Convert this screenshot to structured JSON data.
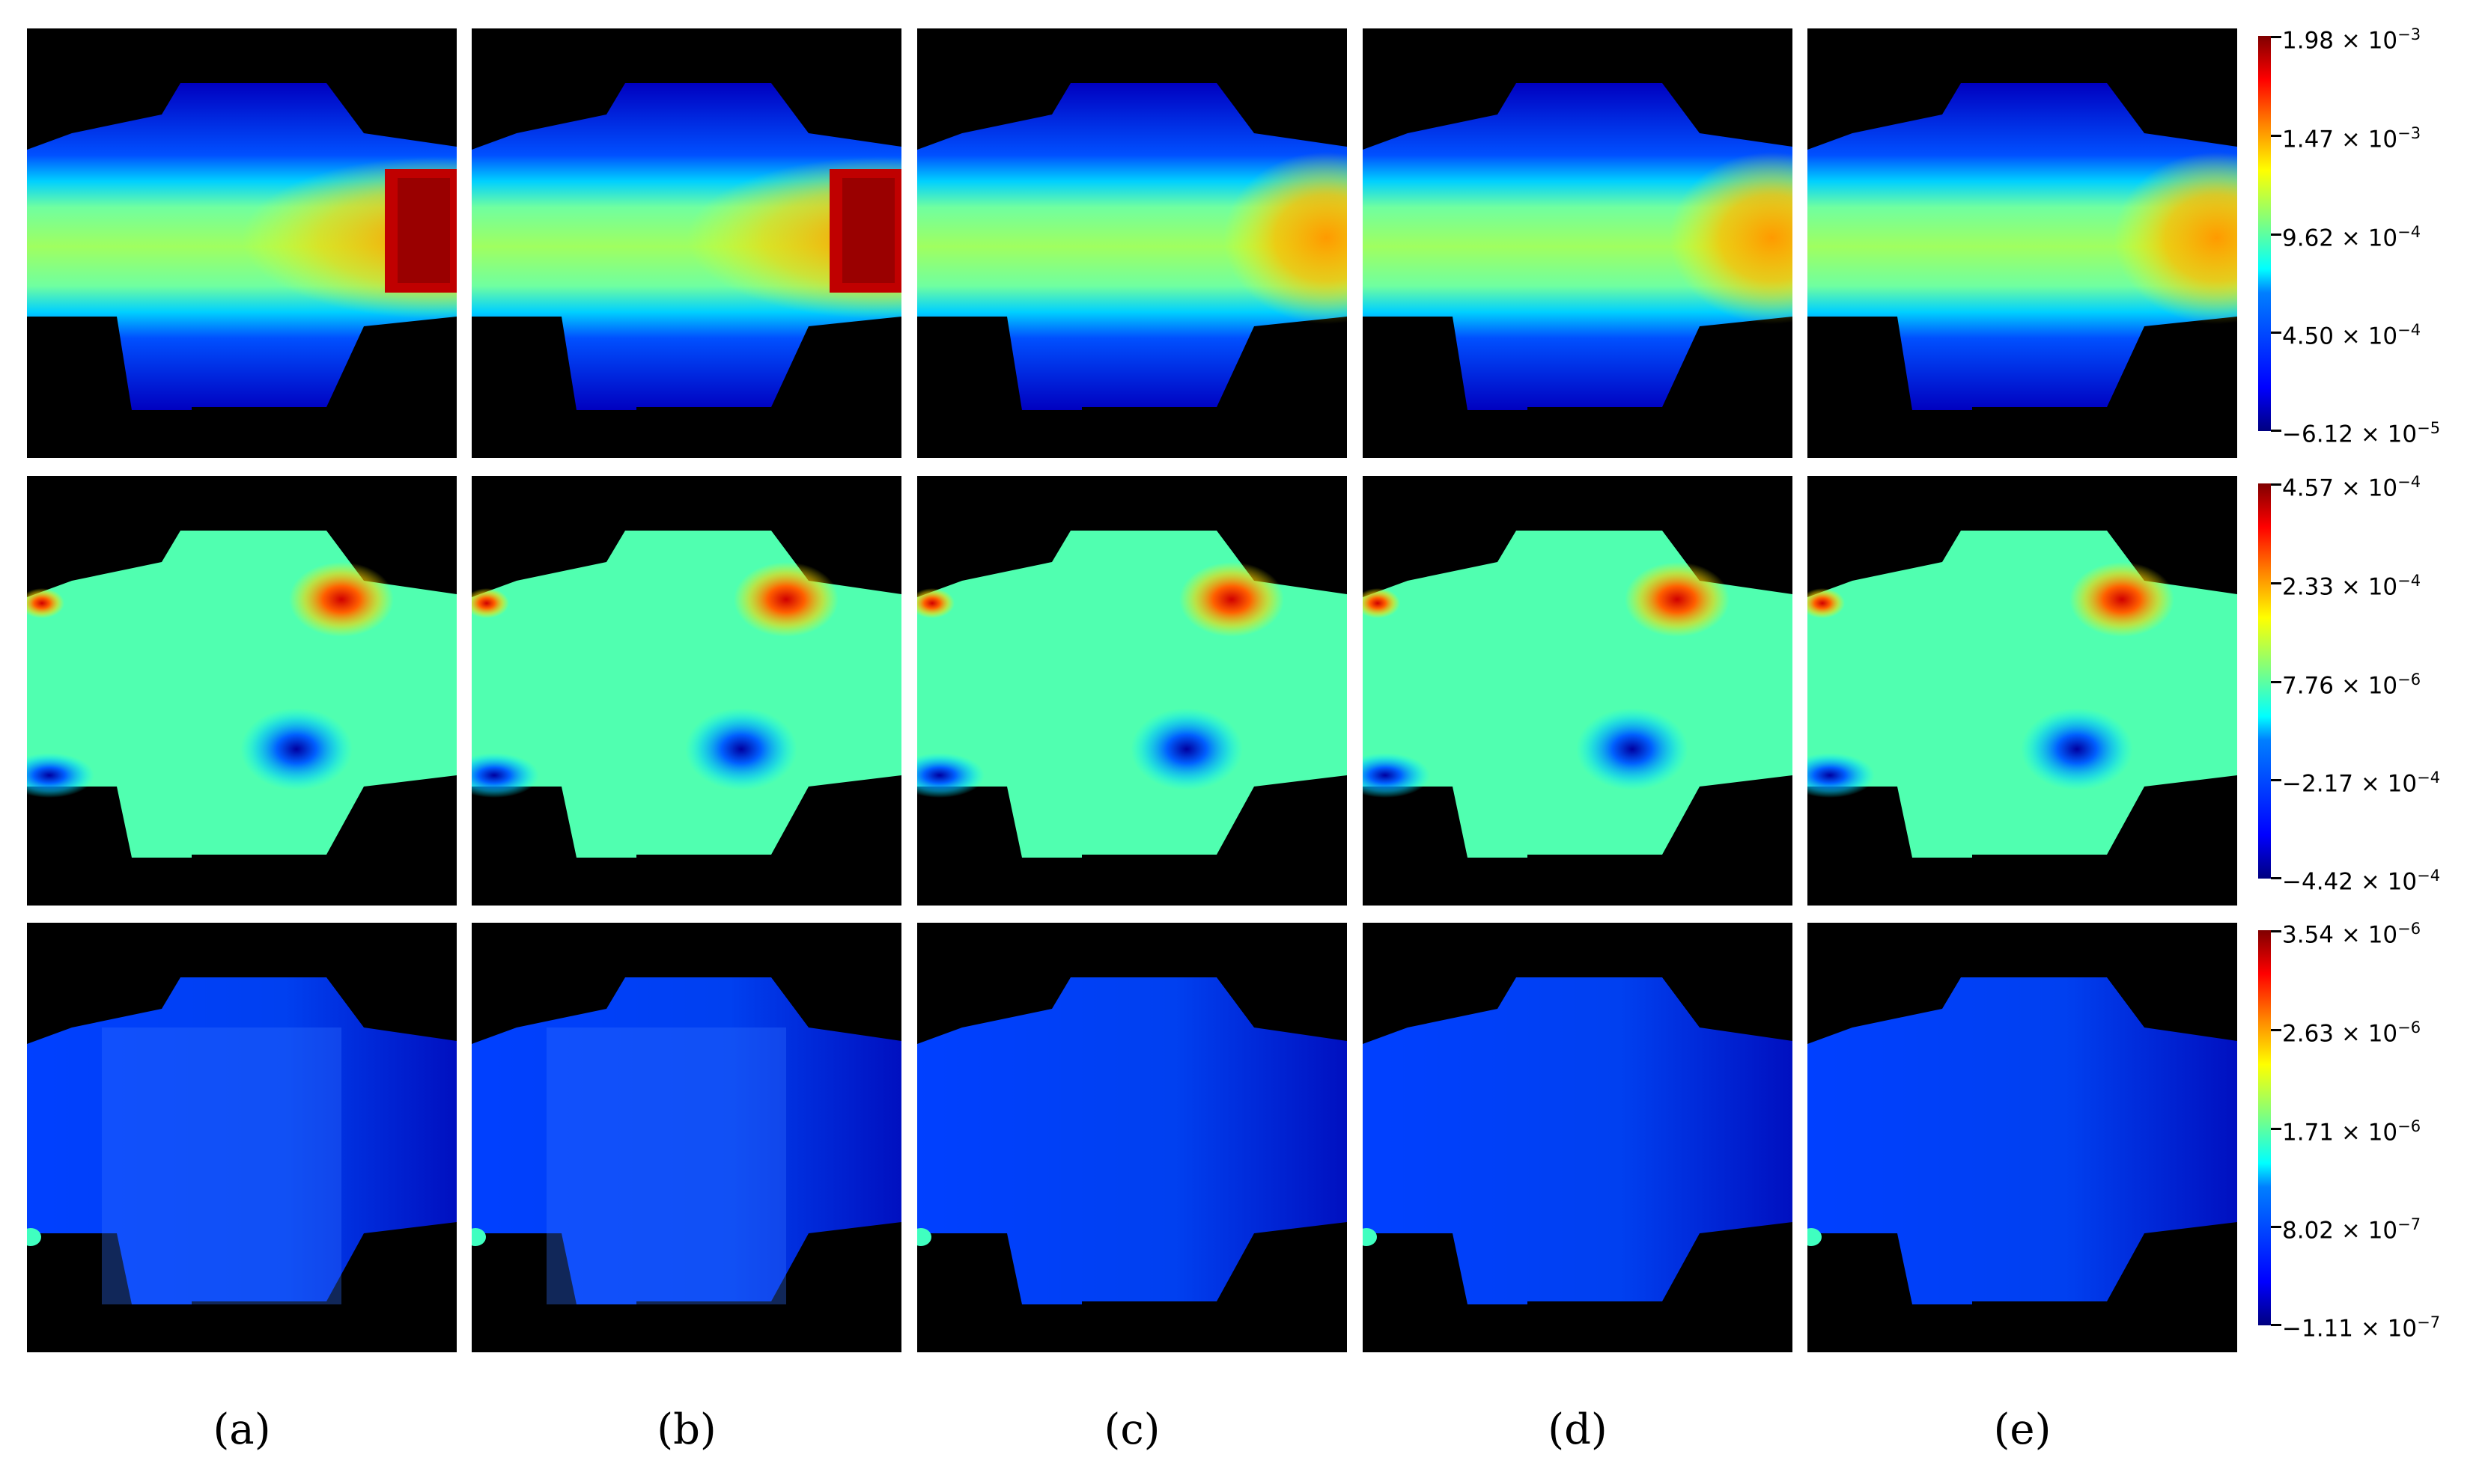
{
  "figure": {
    "columns": [
      "a",
      "b",
      "c",
      "d",
      "e"
    ],
    "column_labels": [
      "(a)",
      "(b)",
      "(c)",
      "(d)",
      "(e)"
    ],
    "rows": 3,
    "background": "#000000",
    "colormap": "jet"
  },
  "colorbars": [
    {
      "row": 1,
      "ticks": [
        {
          "mantissa": "1.98 × 10",
          "exp": "−3"
        },
        {
          "mantissa": "1.47 × 10",
          "exp": "−3"
        },
        {
          "mantissa": "9.62 × 10",
          "exp": "−4"
        },
        {
          "mantissa": "4.50 × 10",
          "exp": "−4"
        },
        {
          "mantissa": "−6.12 × 10",
          "exp": "−5"
        }
      ]
    },
    {
      "row": 2,
      "ticks": [
        {
          "mantissa": "4.57 × 10",
          "exp": "−4"
        },
        {
          "mantissa": "2.33 × 10",
          "exp": "−4"
        },
        {
          "mantissa": "7.76 × 10",
          "exp": "−6"
        },
        {
          "mantissa": "−2.17 × 10",
          "exp": "−4"
        },
        {
          "mantissa": "−4.42 × 10",
          "exp": "−4"
        }
      ]
    },
    {
      "row": 3,
      "ticks": [
        {
          "mantissa": "3.54 × 10",
          "exp": "−6"
        },
        {
          "mantissa": "2.63 × 10",
          "exp": "−6"
        },
        {
          "mantissa": "1.71 × 10",
          "exp": "−6"
        },
        {
          "mantissa": "8.02 × 10",
          "exp": "−7"
        },
        {
          "mantissa": "−1.11 × 10",
          "exp": "−7"
        }
      ]
    }
  ]
}
